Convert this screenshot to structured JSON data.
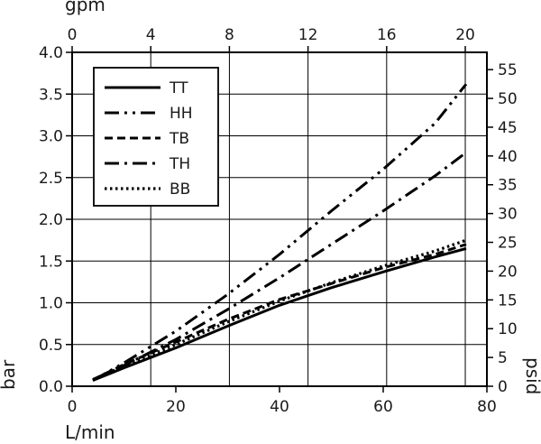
{
  "chart_data": {
    "type": "line",
    "title": "",
    "xlabel": "L/min",
    "ylabel": "bar",
    "x2label": "gpm",
    "y2label": "psid",
    "xlim": [
      0,
      80
    ],
    "ylim": [
      0,
      4.0
    ],
    "x2lim": [
      0,
      21.1
    ],
    "y2lim": [
      0,
      58.0
    ],
    "xticks": [
      "0",
      "20",
      "40",
      "60",
      "80"
    ],
    "yticks": [
      "0.0",
      "0.5",
      "1.0",
      "1.5",
      "2.0",
      "2.5",
      "3.0",
      "3.5",
      "4.0"
    ],
    "x2ticks": [
      "0",
      "4",
      "8",
      "12",
      "16",
      "20"
    ],
    "y2ticks": [
      "0",
      "5",
      "10",
      "15",
      "20",
      "25",
      "30",
      "35",
      "40",
      "45",
      "50",
      "55"
    ],
    "grid": true,
    "legend_position": "top-left",
    "colors": {
      "line": "#000000",
      "grid": "#000000",
      "background": "#ffffff"
    },
    "series": [
      {
        "name": "TT",
        "dash": "solid",
        "x": [
          4,
          10,
          20,
          30,
          40,
          50,
          60,
          70,
          76
        ],
        "y": [
          0.07,
          0.22,
          0.46,
          0.72,
          0.97,
          1.18,
          1.37,
          1.55,
          1.65
        ]
      },
      {
        "name": "HH",
        "dash": "dash-dot-dot",
        "x": [
          4,
          10,
          20,
          30,
          40,
          50,
          60,
          70,
          76
        ],
        "y": [
          0.07,
          0.28,
          0.66,
          1.1,
          1.58,
          2.1,
          2.6,
          3.15,
          3.62
        ]
      },
      {
        "name": "TB",
        "dash": "dashed",
        "x": [
          4,
          10,
          20,
          30,
          40,
          50,
          60,
          70,
          76
        ],
        "y": [
          0.08,
          0.26,
          0.53,
          0.8,
          1.04,
          1.23,
          1.42,
          1.58,
          1.7
        ]
      },
      {
        "name": "TH",
        "dash": "dash-dot",
        "x": [
          4,
          10,
          20,
          30,
          40,
          50,
          60,
          70,
          76
        ],
        "y": [
          0.07,
          0.25,
          0.56,
          0.92,
          1.3,
          1.7,
          2.1,
          2.52,
          2.8
        ]
      },
      {
        "name": "BB",
        "dash": "dotted",
        "x": [
          4,
          10,
          20,
          30,
          40,
          50,
          60,
          70,
          76
        ],
        "y": [
          0.08,
          0.24,
          0.5,
          0.77,
          1.02,
          1.24,
          1.44,
          1.62,
          1.75
        ]
      }
    ]
  }
}
